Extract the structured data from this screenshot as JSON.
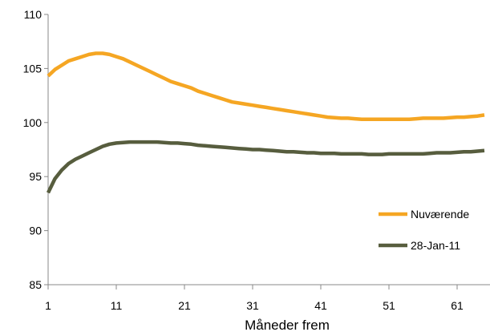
{
  "chart_data": {
    "type": "line",
    "xlabel": "Måneder frem",
    "ylabel": "",
    "xlim": [
      1,
      65
    ],
    "ylim": [
      85,
      110
    ],
    "x_ticks": [
      1,
      11,
      21,
      31,
      41,
      51,
      61
    ],
    "y_ticks": [
      85,
      90,
      95,
      100,
      105,
      110
    ],
    "grid": false,
    "legend_position": "bottom-right",
    "x": [
      1,
      2,
      3,
      4,
      5,
      6,
      7,
      8,
      9,
      10,
      11,
      12,
      13,
      14,
      15,
      16,
      17,
      18,
      19,
      20,
      21,
      22,
      23,
      24,
      25,
      26,
      27,
      28,
      29,
      30,
      31,
      32,
      33,
      34,
      35,
      36,
      37,
      38,
      39,
      40,
      41,
      42,
      43,
      44,
      45,
      46,
      47,
      48,
      49,
      50,
      51,
      52,
      53,
      54,
      55,
      56,
      57,
      58,
      59,
      60,
      61,
      62,
      63,
      64,
      65
    ],
    "series": [
      {
        "name": "Nuværende",
        "color": "#f5a623",
        "values": [
          104.3,
          104.9,
          105.3,
          105.7,
          105.9,
          106.1,
          106.3,
          106.4,
          106.4,
          106.3,
          106.1,
          105.9,
          105.6,
          105.3,
          105.0,
          104.7,
          104.4,
          104.1,
          103.8,
          103.6,
          103.4,
          103.2,
          102.9,
          102.7,
          102.5,
          102.3,
          102.1,
          101.9,
          101.8,
          101.7,
          101.6,
          101.5,
          101.4,
          101.3,
          101.2,
          101.1,
          101.0,
          100.9,
          100.8,
          100.7,
          100.6,
          100.5,
          100.45,
          100.4,
          100.4,
          100.35,
          100.3,
          100.3,
          100.3,
          100.3,
          100.3,
          100.3,
          100.3,
          100.3,
          100.35,
          100.4,
          100.4,
          100.4,
          100.4,
          100.45,
          100.5,
          100.5,
          100.55,
          100.6,
          100.7
        ]
      },
      {
        "name": "28-Jan-11",
        "color": "#575d3e",
        "values": [
          93.5,
          94.8,
          95.6,
          96.2,
          96.6,
          96.9,
          97.2,
          97.5,
          97.8,
          98.0,
          98.1,
          98.15,
          98.2,
          98.2,
          98.2,
          98.2,
          98.2,
          98.15,
          98.1,
          98.1,
          98.05,
          98.0,
          97.9,
          97.85,
          97.8,
          97.75,
          97.7,
          97.65,
          97.6,
          97.55,
          97.5,
          97.5,
          97.45,
          97.4,
          97.35,
          97.3,
          97.3,
          97.25,
          97.2,
          97.2,
          97.15,
          97.15,
          97.15,
          97.1,
          97.1,
          97.1,
          97.1,
          97.05,
          97.05,
          97.05,
          97.1,
          97.1,
          97.1,
          97.1,
          97.1,
          97.1,
          97.15,
          97.2,
          97.2,
          97.2,
          97.25,
          97.3,
          97.3,
          97.35,
          97.4
        ]
      }
    ]
  }
}
